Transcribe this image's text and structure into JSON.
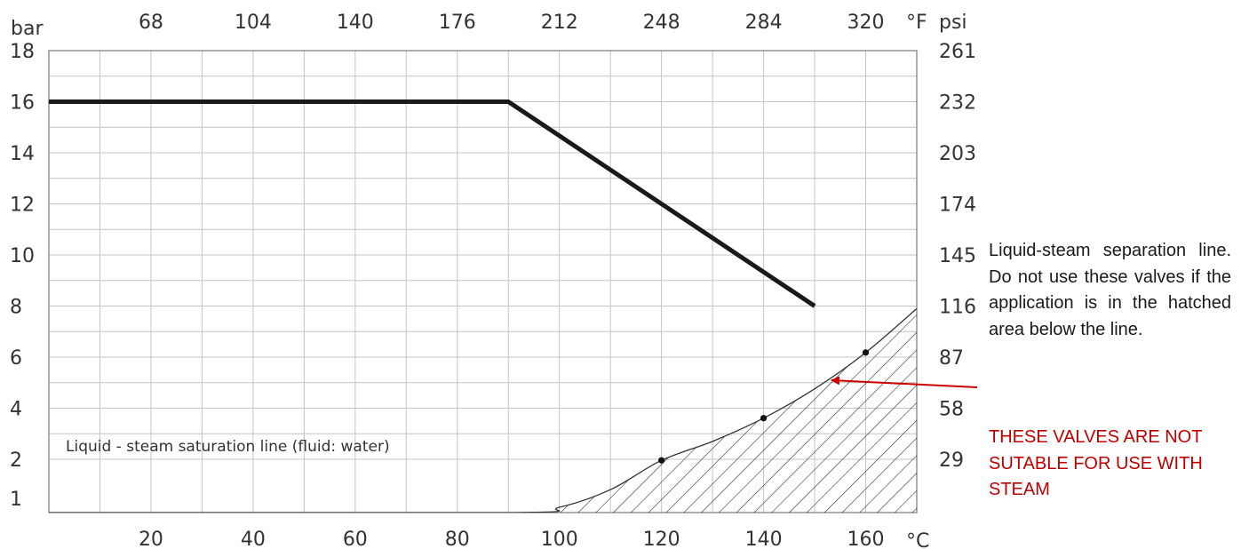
{
  "chart_data": {
    "type": "line",
    "x_unit_bottom": "°C",
    "x_unit_top": "°F",
    "y_unit_left": "bar",
    "y_unit_right": "psi",
    "x_ticks_bottom": [
      "20",
      "40",
      "60",
      "80",
      "100",
      "120",
      "140",
      "160"
    ],
    "x_ticks_top": [
      "68",
      "104",
      "140",
      "176",
      "212",
      "248",
      "284",
      "320"
    ],
    "y_ticks_left": [
      "1",
      "2",
      "4",
      "6",
      "8",
      "10",
      "12",
      "14",
      "16",
      "18"
    ],
    "y_ticks_right": [
      "29",
      "58",
      "87",
      "116",
      "145",
      "174",
      "203",
      "232",
      "261"
    ],
    "xlim": [
      0,
      170
    ],
    "ylim": [
      1,
      18
    ],
    "grid": true,
    "series": [
      {
        "style": "thick-line",
        "x": [
          0,
          90,
          150
        ],
        "y": [
          16,
          16,
          8
        ]
      },
      {
        "name": "Liquid - steam saturation line (fluid: water)",
        "style": "thin-line-hatched-below",
        "x": [
          0,
          90,
          100,
          110,
          120,
          130,
          140,
          150,
          160,
          170
        ],
        "y": [
          1,
          1,
          1.1,
          1.43,
          1.98,
          2.7,
          3.61,
          4.76,
          6.18,
          7.9
        ]
      }
    ],
    "marked_points": [
      {
        "x": 120,
        "y": 1.98
      },
      {
        "x": 140,
        "y": 3.61
      },
      {
        "x": 160,
        "y": 6.18
      }
    ],
    "annotations": {
      "saturation_label": "Liquid - steam saturation line (fluid: water)",
      "side_note": "Liquid-steam separation line. Do not use these valves if the application is in the hatched area below the line.",
      "warning": "THESE VALVES ARE NOT SUTABLE FOR USE WITH STEAM"
    }
  },
  "colors": {
    "main_line": "#1a1a1a",
    "grid": "#bdbdbd",
    "arrow": "#cc0000",
    "warning_text": "#c00000"
  }
}
